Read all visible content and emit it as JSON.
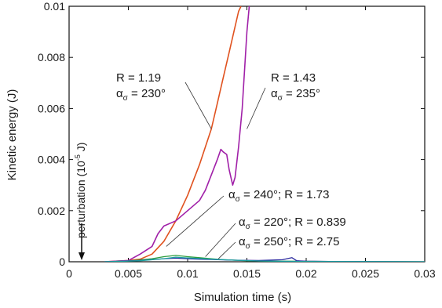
{
  "chart_data": {
    "type": "line",
    "title": "",
    "xlabel": "Simulation time (s)",
    "ylabel": "Kinetic energy (J)",
    "xlim": [
      0,
      0.03
    ],
    "ylim": [
      0,
      0.01
    ],
    "x_ticks": [
      0,
      0.005,
      0.01,
      0.015,
      0.02,
      0.025,
      0.03
    ],
    "x_tick_labels": [
      "0",
      "0.005",
      "0.01",
      "0.015",
      "0.02",
      "0.025",
      "0.03"
    ],
    "y_ticks": [
      0,
      0.002,
      0.004,
      0.006,
      0.008,
      0.01
    ],
    "y_tick_labels": [
      "0",
      "0.002",
      "0.004",
      "0.006",
      "0.008",
      "0.01"
    ],
    "grid": false,
    "legend": "none",
    "series": [
      {
        "color": "#e0521f",
        "x": [
          0.003,
          0.005,
          0.006,
          0.007,
          0.008,
          0.009,
          0.01,
          0.011,
          0.012,
          0.0125,
          0.013,
          0.0135,
          0.014,
          0.0143,
          0.0145
        ],
        "y": [
          0.0,
          5e-05,
          0.0001,
          0.0003,
          0.0008,
          0.0016,
          0.0026,
          0.0038,
          0.0052,
          0.0062,
          0.0072,
          0.0082,
          0.0092,
          0.0098,
          0.01
        ]
      },
      {
        "color": "#a020a8",
        "x": [
          0.003,
          0.005,
          0.006,
          0.007,
          0.0075,
          0.008,
          0.009,
          0.01,
          0.011,
          0.0115,
          0.012,
          0.0125,
          0.0128,
          0.013,
          0.0133,
          0.0135,
          0.0138,
          0.014,
          0.0143,
          0.0146,
          0.0148,
          0.015,
          0.0152
        ],
        "y": [
          0.0,
          5e-05,
          0.0003,
          0.0006,
          0.0011,
          0.0014,
          0.0016,
          0.002,
          0.0024,
          0.0028,
          0.0034,
          0.004,
          0.0044,
          0.0043,
          0.0042,
          0.0036,
          0.003,
          0.0033,
          0.0045,
          0.006,
          0.0075,
          0.009,
          0.01
        ]
      },
      {
        "color": "#2e9e3e",
        "x": [
          0.003,
          0.005,
          0.007,
          0.008,
          0.009,
          0.01,
          0.011,
          0.012,
          0.013,
          0.015,
          0.018,
          0.022,
          0.03
        ],
        "y": [
          0.0,
          3e-05,
          0.00012,
          0.0002,
          0.00025,
          0.0002,
          0.00016,
          0.00012,
          8e-05,
          4e-05,
          2e-05,
          1e-05,
          0.0
        ]
      },
      {
        "color": "#2a2a9e",
        "x": [
          0.003,
          0.006,
          0.008,
          0.009,
          0.01,
          0.011,
          0.012,
          0.014,
          0.016,
          0.018,
          0.0188,
          0.0192,
          0.02,
          0.022,
          0.03
        ],
        "y": [
          0.0,
          5e-05,
          0.00012,
          0.00014,
          0.00012,
          0.0001,
          9e-05,
          6e-05,
          5e-05,
          8e-05,
          0.00016,
          4e-05,
          2e-05,
          1e-05,
          0.0
        ]
      },
      {
        "color": "#1aa0a0",
        "x": [
          0.003,
          0.006,
          0.008,
          0.009,
          0.01,
          0.012,
          0.014,
          0.016,
          0.02,
          0.03
        ],
        "y": [
          0.0,
          4e-05,
          0.00012,
          0.00018,
          0.00015,
          0.0001,
          6e-05,
          3e-05,
          1e-05,
          0.0
        ]
      }
    ],
    "annotations": {
      "r119": {
        "r": "R = 1.19",
        "alpha": "α",
        "sub": "σ",
        "rest": " = 230°"
      },
      "r143": {
        "r": "R = 1.43",
        "alpha": "α",
        "sub": "σ",
        "rest": " = 235°"
      },
      "a240": {
        "alpha": "α",
        "sub": "σ",
        "rest": " = 240°; R = 1.73"
      },
      "a220": {
        "alpha": "α",
        "sub": "σ",
        "rest": " = 220°; R = 0.839"
      },
      "a250": {
        "alpha": "α",
        "sub": "σ",
        "rest": " = 250°; R = 2.75"
      },
      "perturbation": {
        "text": "perturbation (10",
        "exp": "-5",
        "unit": " J)"
      }
    }
  }
}
